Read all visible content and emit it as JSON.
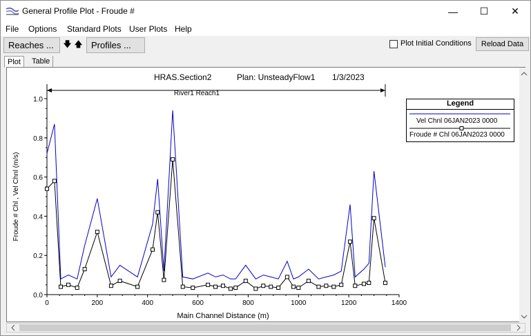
{
  "window": {
    "title": "General Profile Plot - Froude #",
    "minimize_glyph": "—",
    "maximize_glyph": "☐",
    "close_glyph": "✕"
  },
  "menu": {
    "items": [
      {
        "label": "File",
        "underline": "F"
      },
      {
        "label": "Options",
        "underline": "O"
      },
      {
        "label": "Standard Plots",
        "underline": "S"
      },
      {
        "label": "User Plots",
        "underline": "U"
      },
      {
        "label": "Help",
        "underline": "H"
      }
    ]
  },
  "toolbar": {
    "reaches_label": "Reaches ...",
    "down_arrow": "🡇",
    "up_arrow": "🡅",
    "profiles_label": "Profiles ...",
    "plot_initial_label": "Plot Initial Conditions",
    "plot_initial_checked": false,
    "reload_label": "Reload Data"
  },
  "tabs": [
    {
      "label": "Plot",
      "active": true
    },
    {
      "label": "Table",
      "active": false
    }
  ],
  "chart_data": {
    "type": "line",
    "title_left": "HRAS.Section2",
    "title_mid": "Plan: UnsteadyFlow1",
    "title_right": "1/3/2023",
    "reach_label": "River1 Reach1",
    "reach_range": [
      0,
      1345
    ],
    "xlabel": "Main Channel Distance (m)",
    "ylabel": "Froude # Chl , Vel Chnl (m/s)",
    "xlim": [
      0,
      1400
    ],
    "ylim": [
      0,
      1.0
    ],
    "x_ticks": [
      "0",
      "200",
      "400",
      "600",
      "800",
      "1000",
      "1200",
      "1400"
    ],
    "y_ticks": [
      "0.0",
      "0.2",
      "0.4",
      "0.6",
      "0.8",
      "1.0"
    ],
    "legend_title": "Legend",
    "series": [
      {
        "name": "Vel Chnl 06JAN2023 0000",
        "color": "#0000cc",
        "marker": "none",
        "x": [
          0,
          30,
          55,
          85,
          120,
          150,
          200,
          255,
          290,
          360,
          420,
          440,
          465,
          500,
          540,
          580,
          640,
          670,
          700,
          730,
          750,
          790,
          830,
          860,
          890,
          920,
          955,
          980,
          1000,
          1040,
          1080,
          1110,
          1140,
          1170,
          1205,
          1225,
          1260,
          1280,
          1300,
          1345
        ],
        "y": [
          0.72,
          0.87,
          0.08,
          0.1,
          0.08,
          0.25,
          0.49,
          0.09,
          0.15,
          0.09,
          0.36,
          0.59,
          0.12,
          0.94,
          0.09,
          0.08,
          0.11,
          0.09,
          0.1,
          0.08,
          0.08,
          0.15,
          0.08,
          0.1,
          0.09,
          0.08,
          0.17,
          0.08,
          0.09,
          0.13,
          0.08,
          0.09,
          0.1,
          0.12,
          0.46,
          0.09,
          0.13,
          0.16,
          0.63,
          0.14
        ]
      },
      {
        "name": "Froude # Chl 06JAN2023 0000",
        "color": "#000000",
        "marker": "square",
        "x": [
          0,
          30,
          55,
          85,
          120,
          150,
          200,
          255,
          290,
          360,
          420,
          440,
          465,
          500,
          540,
          580,
          640,
          670,
          700,
          730,
          750,
          790,
          830,
          860,
          890,
          920,
          955,
          980,
          1000,
          1040,
          1080,
          1110,
          1140,
          1170,
          1205,
          1225,
          1260,
          1280,
          1300,
          1345
        ],
        "y": [
          0.54,
          0.58,
          0.04,
          0.05,
          0.035,
          0.13,
          0.32,
          0.045,
          0.07,
          0.04,
          0.23,
          0.42,
          0.075,
          0.69,
          0.04,
          0.035,
          0.05,
          0.04,
          0.045,
          0.03,
          0.035,
          0.07,
          0.03,
          0.045,
          0.04,
          0.035,
          0.09,
          0.04,
          0.035,
          0.07,
          0.04,
          0.045,
          0.04,
          0.05,
          0.27,
          0.045,
          0.055,
          0.06,
          0.39,
          0.06
        ]
      }
    ]
  }
}
